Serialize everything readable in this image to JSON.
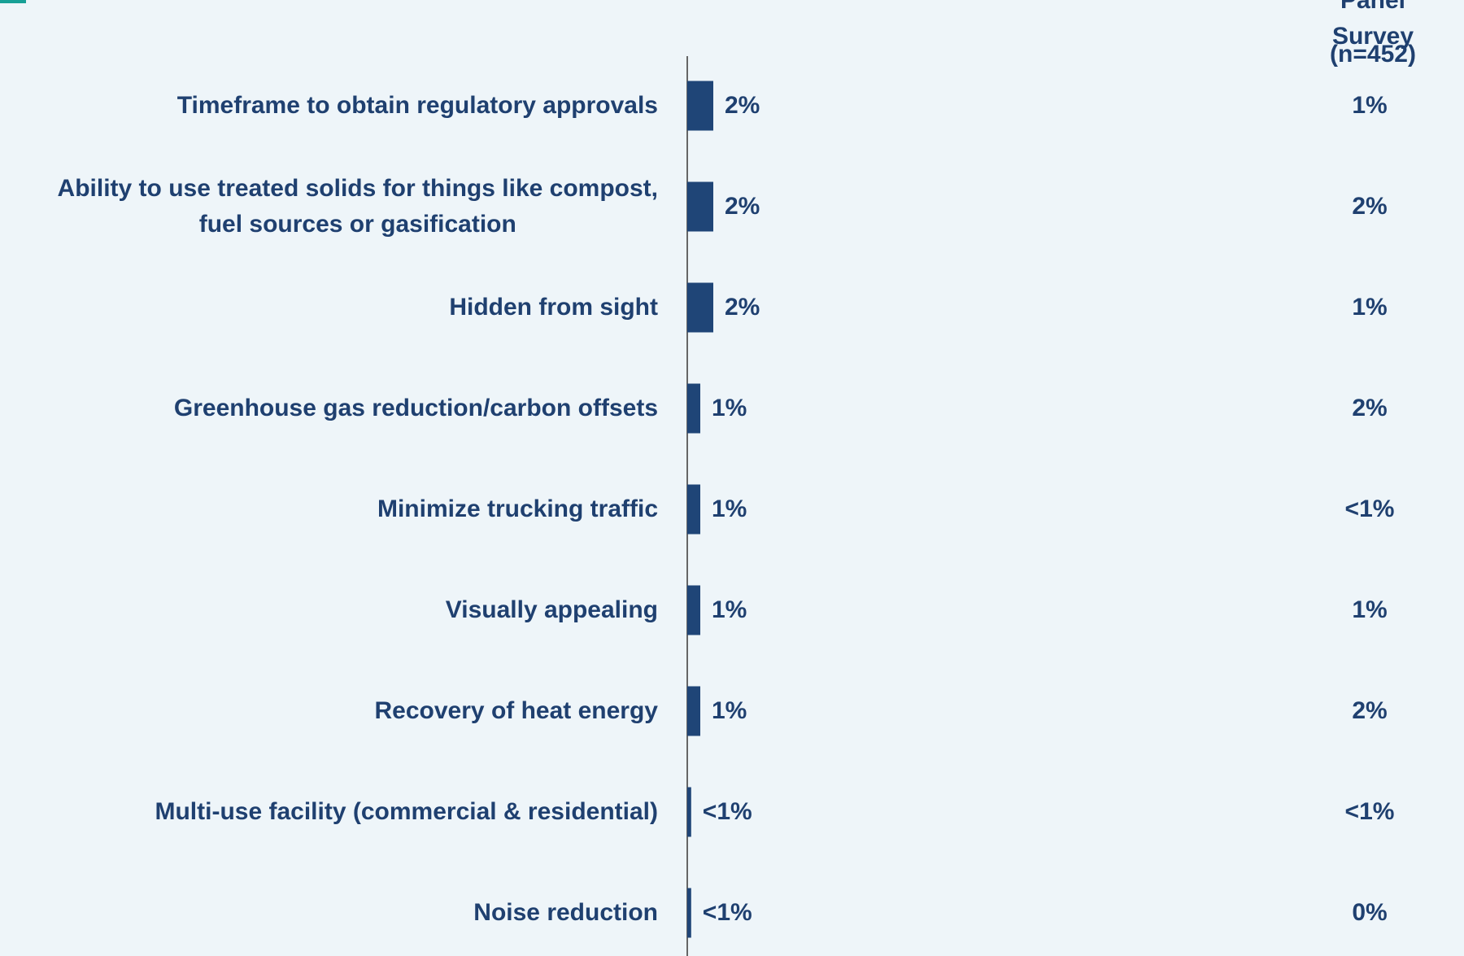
{
  "chart_data": {
    "type": "bar",
    "categories": [
      "Timeframe to obtain regulatory approvals",
      "Ability to use treated solids for things like compost,\nfuel sources or gasification",
      "Hidden from sight",
      "Greenhouse gas reduction/carbon offsets",
      "Minimize trucking traffic",
      "Visually appealing",
      "Recovery of heat energy",
      "Multi-use facility (commercial & residential)",
      "Noise reduction"
    ],
    "values": [
      2,
      2,
      2,
      1,
      1,
      1,
      1,
      0.3,
      0.3
    ],
    "value_labels": [
      "2%",
      "2%",
      "2%",
      "1%",
      "1%",
      "1%",
      "1%",
      "<1%",
      "<1%"
    ],
    "color": "#1f4577"
  },
  "panel_survey": {
    "title_lines": [
      "Panel Survey",
      "(n=452)"
    ],
    "values": [
      "1%",
      "2%",
      "1%",
      "2%",
      "<1%",
      "1%",
      "2%",
      "<1%",
      "0%"
    ]
  }
}
